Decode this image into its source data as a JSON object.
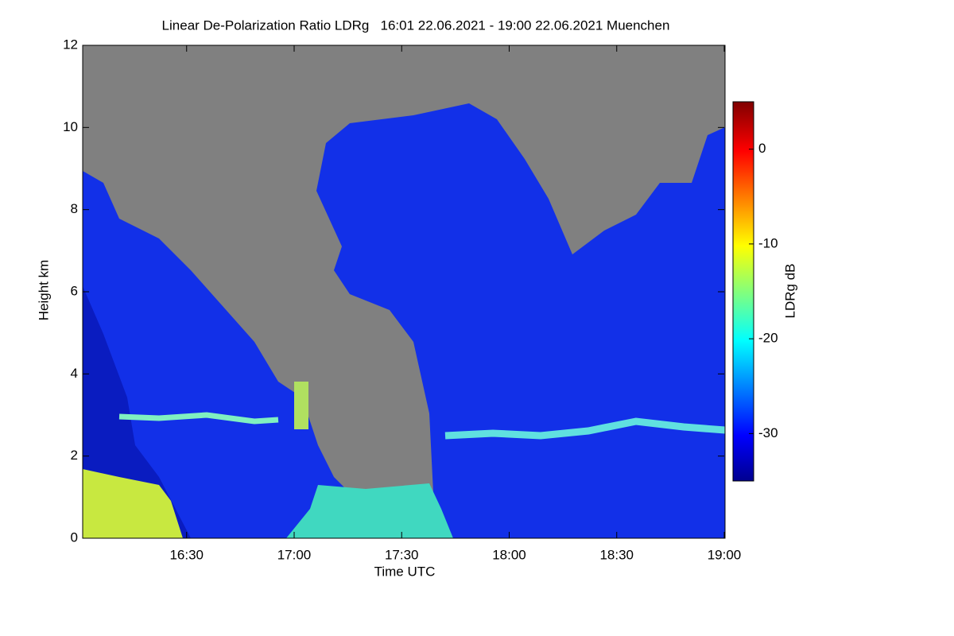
{
  "chart_data": {
    "type": "heatmap",
    "title": "Linear De-Polarization Ratio LDRg   16:01 22.06.2021 - 19:00 22.06.2021 Muenchen",
    "x_label": "Time UTC",
    "y_label": "Height km",
    "colorbar_label": "LDRg dB",
    "xlim": [
      961,
      1140
    ],
    "xticks": [
      {
        "value": 990,
        "label": "16:30"
      },
      {
        "value": 1020,
        "label": "17:00"
      },
      {
        "value": 1050,
        "label": "17:30"
      },
      {
        "value": 1080,
        "label": "18:00"
      },
      {
        "value": 1110,
        "label": "18:30"
      },
      {
        "value": 1140,
        "label": "19:00"
      }
    ],
    "ylim": [
      0,
      12
    ],
    "yticks": [
      0,
      2,
      4,
      6,
      8,
      10,
      12
    ],
    "clim": [
      -35,
      5
    ],
    "cticks": [
      -30,
      -20,
      -10,
      0
    ]
  }
}
